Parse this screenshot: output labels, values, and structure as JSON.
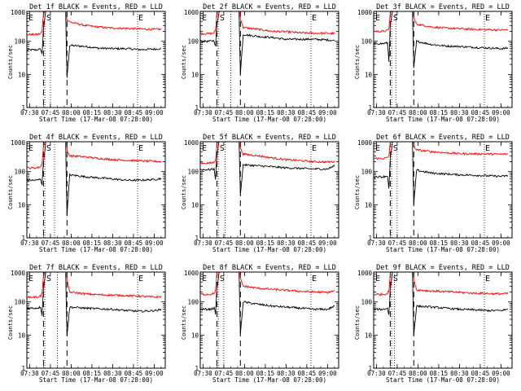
{
  "ylabel": "Counts/sec",
  "xlabel": "Start Time (17-Mar-08 07:28:00)",
  "x_tick_labels": [
    "07:30",
    "07:45",
    "08:00",
    "08:15",
    "08:30",
    "08:45",
    "09:00"
  ],
  "y_tick_labels": [
    "1",
    "10",
    "100",
    "1000"
  ],
  "colors": {
    "events": "#000000",
    "lld": "#ff0000",
    "frame": "#000000"
  },
  "panels_meta": [
    {
      "title": "Det 1f BLACK = Events, RED = LLD",
      "markers": [
        "E",
        "S",
        "E"
      ]
    },
    {
      "title": "Det 2f BLACK = Events, RED = LLD",
      "markers": [
        "E",
        "S",
        "E"
      ]
    },
    {
      "title": "Det 3f BLACK = Events, RED = LLD",
      "markers": [
        "E",
        "S",
        "E"
      ]
    },
    {
      "title": "Det 4f BLACK = Events, RED = LLD",
      "markers": [
        "E",
        "S",
        "E"
      ]
    },
    {
      "title": "Det 5f BLACK = Events, RED = LLD",
      "markers": [
        "E",
        "S",
        "E"
      ]
    },
    {
      "title": "Det 6f BLACK = Events, RED = LLD",
      "markers": [
        "E",
        "S",
        "E"
      ]
    },
    {
      "title": "Det 7f BLACK = Events, RED = LLD",
      "markers": [
        "E",
        "S",
        "E"
      ]
    },
    {
      "title": "Det 8f BLACK = Events, RED = LLD",
      "markers": [
        "E",
        "S",
        "E"
      ]
    },
    {
      "title": "Det 9f BLACK = Events, RED = LLD",
      "markers": [
        "E",
        "S",
        "E"
      ]
    }
  ],
  "chart_data": [
    {
      "type": "line",
      "title": "Det 1f BLACK = Events, RED = LLD",
      "xlabel": "Start Time (17-Mar-08 07:28:00)",
      "ylabel": "Counts/sec",
      "y_scale": "log",
      "ylim": [
        1,
        1000
      ],
      "xlim": [
        "07:28",
        "09:08"
      ],
      "grid": false,
      "dotted_lines_x": [
        "07:41",
        "07:45",
        "08:48"
      ],
      "dashed_lines_x": [
        "07:40",
        "07:57"
      ],
      "series": [
        {
          "name": "Events",
          "color": "#000000",
          "x": [
            "07:28",
            "07:35",
            "07:38",
            "07:39",
            "07:40",
            "07:42",
            "07:56",
            "07:57",
            "07:59",
            "08:10",
            "08:20",
            "08:30",
            "08:40",
            "08:50",
            "09:00",
            "09:05"
          ],
          "y": [
            55,
            55,
            58,
            40,
            250,
            1000,
            1000,
            8,
            75,
            70,
            62,
            60,
            60,
            56,
            58,
            60
          ]
        },
        {
          "name": "LLD",
          "color": "#ff0000",
          "x": [
            "07:28",
            "07:35",
            "07:38",
            "07:39",
            "07:40",
            "07:42",
            "07:56",
            "07:57",
            "07:59",
            "08:10",
            "08:20",
            "08:30",
            "08:40",
            "08:50",
            "09:00",
            "09:05"
          ],
          "y": [
            160,
            160,
            170,
            200,
            700,
            1000,
            1000,
            450,
            380,
            300,
            270,
            250,
            245,
            235,
            230,
            230
          ]
        }
      ]
    },
    {
      "type": "line",
      "title": "Det 2f BLACK = Events, RED = LLD",
      "xlabel": "Start Time (17-Mar-08 07:28:00)",
      "ylabel": "Counts/sec",
      "y_scale": "log",
      "ylim": [
        1,
        1000
      ],
      "xlim": [
        "07:28",
        "09:08"
      ],
      "grid": false,
      "dotted_lines_x": [
        "07:41",
        "07:50",
        "08:48"
      ],
      "dashed_lines_x": [
        "07:40",
        "07:57"
      ],
      "series": [
        {
          "name": "Events",
          "color": "#000000",
          "x": [
            "07:28",
            "07:35",
            "07:38",
            "07:39",
            "07:40",
            "07:42",
            "07:56",
            "07:57",
            "07:59",
            "08:10",
            "08:20",
            "08:30",
            "08:40",
            "08:50",
            "09:00",
            "09:05"
          ],
          "y": [
            100,
            100,
            105,
            70,
            300,
            1000,
            1000,
            10,
            160,
            140,
            130,
            115,
            115,
            115,
            110,
            105
          ]
        },
        {
          "name": "LLD",
          "color": "#ff0000",
          "x": [
            "07:28",
            "07:35",
            "07:38",
            "07:39",
            "07:40",
            "07:42",
            "07:56",
            "07:57",
            "07:59",
            "08:10",
            "08:20",
            "08:30",
            "08:40",
            "08:50",
            "09:00",
            "09:05"
          ],
          "y": [
            170,
            170,
            180,
            210,
            700,
            1000,
            1000,
            500,
            260,
            230,
            200,
            195,
            180,
            175,
            175,
            170
          ]
        }
      ]
    },
    {
      "type": "line",
      "title": "Det 3f BLACK = Events, RED = LLD",
      "xlabel": "Start Time (17-Mar-08 07:28:00)",
      "ylabel": "Counts/sec",
      "y_scale": "log",
      "ylim": [
        1,
        1000
      ],
      "xlim": [
        "07:28",
        "09:08"
      ],
      "grid": false,
      "dotted_lines_x": [
        "07:41",
        "07:44",
        "08:48"
      ],
      "dashed_lines_x": [
        "07:40",
        "07:57"
      ],
      "series": [
        {
          "name": "Events",
          "color": "#000000",
          "x": [
            "07:28",
            "07:35",
            "07:38",
            "07:39",
            "07:40",
            "07:42",
            "07:56",
            "07:57",
            "07:59",
            "08:10",
            "08:20",
            "08:30",
            "08:40",
            "08:50",
            "09:00",
            "09:05"
          ],
          "y": [
            85,
            85,
            90,
            25,
            300,
            1000,
            1000,
            15,
            100,
            80,
            72,
            70,
            66,
            63,
            60,
            62
          ]
        },
        {
          "name": "LLD",
          "color": "#ff0000",
          "x": [
            "07:28",
            "07:35",
            "07:38",
            "07:39",
            "07:40",
            "07:42",
            "07:56",
            "07:57",
            "07:59",
            "08:10",
            "08:20",
            "08:30",
            "08:40",
            "08:50",
            "09:00",
            "09:05"
          ],
          "y": [
            200,
            200,
            210,
            250,
            700,
            1000,
            1000,
            500,
            330,
            270,
            250,
            240,
            230,
            225,
            220,
            220
          ]
        }
      ]
    },
    {
      "type": "line",
      "title": "Det 4f BLACK = Events, RED = LLD",
      "xlabel": "Start Time (17-Mar-08 07:28:00)",
      "ylabel": "Counts/sec",
      "y_scale": "log",
      "ylim": [
        1,
        1000
      ],
      "xlim": [
        "07:28",
        "09:08"
      ],
      "grid": false,
      "dotted_lines_x": [
        "07:41",
        "07:48",
        "08:48"
      ],
      "dashed_lines_x": [
        "07:40",
        "07:57"
      ],
      "series": [
        {
          "name": "Events",
          "color": "#000000",
          "x": [
            "07:28",
            "07:35",
            "07:38",
            "07:39",
            "07:40",
            "07:42",
            "07:56",
            "07:57",
            "07:59",
            "08:10",
            "08:20",
            "08:30",
            "08:40",
            "08:50",
            "09:00",
            "09:05"
          ],
          "y": [
            55,
            55,
            60,
            40,
            200,
            1000,
            1000,
            5,
            80,
            70,
            65,
            60,
            55,
            55,
            58,
            62
          ]
        },
        {
          "name": "LLD",
          "color": "#ff0000",
          "x": [
            "07:28",
            "07:35",
            "07:38",
            "07:39",
            "07:40",
            "07:42",
            "07:56",
            "07:57",
            "07:59",
            "08:10",
            "08:20",
            "08:30",
            "08:40",
            "08:50",
            "09:00",
            "09:05"
          ],
          "y": [
            130,
            130,
            140,
            180,
            600,
            1000,
            1000,
            450,
            300,
            280,
            250,
            230,
            220,
            210,
            205,
            200
          ]
        }
      ]
    },
    {
      "type": "line",
      "title": "Det 5f BLACK = Events, RED = LLD",
      "xlabel": "Start Time (17-Mar-08 07:28:00)",
      "ylabel": "Counts/sec",
      "y_scale": "log",
      "ylim": [
        1,
        1000
      ],
      "xlim": [
        "07:28",
        "09:08"
      ],
      "grid": false,
      "dotted_lines_x": [
        "07:41",
        "07:46",
        "08:48"
      ],
      "dashed_lines_x": [
        "07:40",
        "07:57"
      ],
      "series": [
        {
          "name": "Events",
          "color": "#000000",
          "x": [
            "07:28",
            "07:35",
            "07:38",
            "07:39",
            "07:40",
            "07:42",
            "07:56",
            "07:57",
            "07:59",
            "08:10",
            "08:20",
            "08:30",
            "08:40",
            "08:50",
            "09:00",
            "09:05"
          ],
          "y": [
            115,
            115,
            120,
            60,
            300,
            1000,
            1000,
            20,
            160,
            150,
            140,
            130,
            125,
            120,
            120,
            150
          ]
        },
        {
          "name": "LLD",
          "color": "#ff0000",
          "x": [
            "07:28",
            "07:35",
            "07:38",
            "07:39",
            "07:40",
            "07:42",
            "07:56",
            "07:57",
            "07:59",
            "08:10",
            "08:20",
            "08:30",
            "08:40",
            "08:50",
            "09:00",
            "09:05"
          ],
          "y": [
            180,
            180,
            190,
            220,
            700,
            1000,
            1000,
            500,
            340,
            300,
            260,
            230,
            215,
            200,
            195,
            200
          ]
        }
      ]
    },
    {
      "type": "line",
      "title": "Det 6f BLACK = Events, RED = LLD",
      "xlabel": "Start Time (17-Mar-08 07:28:00)",
      "ylabel": "Counts/sec",
      "y_scale": "log",
      "ylim": [
        1,
        1000
      ],
      "xlim": [
        "07:28",
        "09:08"
      ],
      "grid": false,
      "dotted_lines_x": [
        "07:41",
        "07:45",
        "08:48"
      ],
      "dashed_lines_x": [
        "07:40",
        "07:57"
      ],
      "series": [
        {
          "name": "Events",
          "color": "#000000",
          "x": [
            "07:28",
            "07:35",
            "07:38",
            "07:39",
            "07:40",
            "07:42",
            "07:56",
            "07:57",
            "07:59",
            "08:10",
            "08:20",
            "08:30",
            "08:40",
            "08:50",
            "09:00",
            "09:05"
          ],
          "y": [
            70,
            70,
            75,
            30,
            250,
            1000,
            1000,
            10,
            110,
            90,
            85,
            80,
            78,
            75,
            72,
            75
          ]
        },
        {
          "name": "LLD",
          "color": "#ff0000",
          "x": [
            "07:28",
            "07:35",
            "07:38",
            "07:39",
            "07:40",
            "07:42",
            "07:56",
            "07:57",
            "07:59",
            "08:10",
            "08:20",
            "08:30",
            "08:40",
            "08:50",
            "09:00",
            "09:05"
          ],
          "y": [
            250,
            250,
            260,
            300,
            800,
            1000,
            1000,
            600,
            450,
            400,
            370,
            350,
            345,
            340,
            335,
            340
          ]
        }
      ]
    },
    {
      "type": "line",
      "title": "Det 7f BLACK = Events, RED = LLD",
      "xlabel": "Start Time (17-Mar-08 07:28:00)",
      "ylabel": "Counts/sec",
      "y_scale": "log",
      "ylim": [
        1,
        1000
      ],
      "xlim": [
        "07:28",
        "09:08"
      ],
      "grid": false,
      "dotted_lines_x": [
        "07:41",
        "07:50",
        "08:48"
      ],
      "dashed_lines_x": [
        "07:40",
        "07:57"
      ],
      "series": [
        {
          "name": "Events",
          "color": "#000000",
          "x": [
            "07:28",
            "07:35",
            "07:38",
            "07:39",
            "07:40",
            "07:42",
            "07:56",
            "07:57",
            "07:59",
            "08:10",
            "08:20",
            "08:30",
            "08:40",
            "08:50",
            "09:00",
            "09:05"
          ],
          "y": [
            65,
            65,
            70,
            40,
            250,
            1000,
            1000,
            10,
            70,
            65,
            62,
            60,
            55,
            52,
            55,
            58
          ]
        },
        {
          "name": "LLD",
          "color": "#ff0000",
          "x": [
            "07:28",
            "07:35",
            "07:38",
            "07:39",
            "07:40",
            "07:42",
            "07:56",
            "07:57",
            "07:59",
            "08:10",
            "08:20",
            "08:30",
            "08:40",
            "08:50",
            "09:00",
            "09:05"
          ],
          "y": [
            140,
            140,
            150,
            180,
            600,
            1000,
            1000,
            450,
            200,
            175,
            165,
            160,
            155,
            150,
            140,
            145
          ]
        }
      ]
    },
    {
      "type": "line",
      "title": "Det 8f BLACK = Events, RED = LLD",
      "xlabel": "Start Time (17-Mar-08 07:28:00)",
      "ylabel": "Counts/sec",
      "y_scale": "log",
      "ylim": [
        1,
        1000
      ],
      "xlim": [
        "07:28",
        "09:08"
      ],
      "grid": false,
      "dotted_lines_x": [
        "07:41",
        "07:45",
        "08:48"
      ],
      "dashed_lines_x": [
        "07:40",
        "07:57"
      ],
      "series": [
        {
          "name": "Events",
          "color": "#000000",
          "x": [
            "07:28",
            "07:35",
            "07:38",
            "07:39",
            "07:40",
            "07:42",
            "07:56",
            "07:57",
            "07:59",
            "08:10",
            "08:20",
            "08:30",
            "08:40",
            "08:50",
            "09:00",
            "09:05"
          ],
          "y": [
            60,
            60,
            65,
            45,
            250,
            1000,
            1000,
            10,
            100,
            85,
            75,
            70,
            65,
            60,
            60,
            75
          ]
        },
        {
          "name": "LLD",
          "color": "#ff0000",
          "x": [
            "07:28",
            "07:35",
            "07:38",
            "07:39",
            "07:40",
            "07:42",
            "07:56",
            "07:57",
            "07:59",
            "08:10",
            "08:20",
            "08:30",
            "08:40",
            "08:50",
            "09:00",
            "09:05"
          ],
          "y": [
            170,
            170,
            180,
            220,
            700,
            1000,
            1000,
            500,
            300,
            260,
            240,
            225,
            210,
            200,
            195,
            215
          ]
        }
      ]
    },
    {
      "type": "line",
      "title": "Det 9f BLACK = Events, RED = LLD",
      "xlabel": "Start Time (17-Mar-08 07:28:00)",
      "ylabel": "Counts/sec",
      "y_scale": "log",
      "ylim": [
        1,
        1000
      ],
      "xlim": [
        "07:28",
        "09:08"
      ],
      "grid": false,
      "dotted_lines_x": [
        "07:41",
        "07:43",
        "08:48"
      ],
      "dashed_lines_x": [
        "07:40",
        "07:57"
      ],
      "series": [
        {
          "name": "Events",
          "color": "#000000",
          "x": [
            "07:28",
            "07:35",
            "07:38",
            "07:39",
            "07:40",
            "07:42",
            "07:56",
            "07:57",
            "07:59",
            "08:10",
            "08:20",
            "08:30",
            "08:40",
            "08:50",
            "09:00",
            "09:05"
          ],
          "y": [
            60,
            60,
            65,
            40,
            250,
            1000,
            1000,
            10,
            75,
            70,
            65,
            60,
            58,
            55,
            55,
            60
          ]
        },
        {
          "name": "LLD",
          "color": "#ff0000",
          "x": [
            "07:28",
            "07:35",
            "07:38",
            "07:39",
            "07:40",
            "07:42",
            "07:56",
            "07:57",
            "07:59",
            "08:10",
            "08:20",
            "08:30",
            "08:40",
            "08:50",
            "09:00",
            "09:05"
          ],
          "y": [
            170,
            170,
            180,
            220,
            700,
            1000,
            1000,
            500,
            230,
            215,
            205,
            195,
            185,
            180,
            175,
            180
          ]
        }
      ]
    }
  ]
}
